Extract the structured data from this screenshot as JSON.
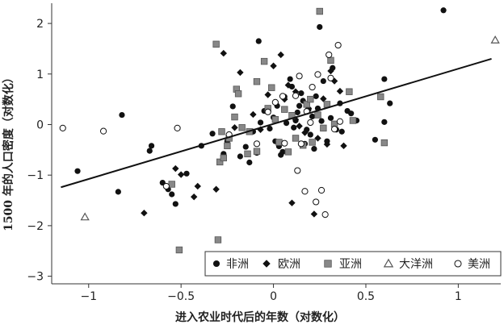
{
  "chart_data": {
    "type": "scatter",
    "title": "",
    "xlabel": "进入农业时代后的年数（对数化）",
    "ylabel": "1500 年的人口密度（对数化）",
    "xlim": [
      -1.2,
      1.23
    ],
    "ylim": [
      -3.15,
      2.4
    ],
    "xticks": [
      -1,
      -0.5,
      0,
      0.5,
      1
    ],
    "xtick_labels": [
      "−1",
      "−0.5",
      "0",
      "0.5",
      "1"
    ],
    "yticks": [
      -3,
      -2,
      -1,
      0,
      1,
      2
    ],
    "ytick_labels": [
      "−3",
      "−2",
      "−1",
      "0",
      "1",
      "2"
    ],
    "grid": false,
    "legend_position": "bottom-right",
    "fit_line": {
      "x": [
        -1.15,
        1.18
      ],
      "y": [
        -1.24,
        1.3
      ]
    },
    "series": [
      {
        "name": "非洲",
        "marker": "circle-filled",
        "color": "#111111",
        "points": [
          [
            -1.06,
            -0.92
          ],
          [
            -0.82,
            0.19
          ],
          [
            -0.84,
            -1.33
          ],
          [
            -0.66,
            -0.42
          ],
          [
            -0.67,
            -0.52
          ],
          [
            -0.6,
            -1.15
          ],
          [
            -0.57,
            -1.28
          ],
          [
            -0.55,
            -1.38
          ],
          [
            -0.53,
            -1.57
          ],
          [
            -0.47,
            -0.97
          ],
          [
            -0.39,
            -0.42
          ],
          [
            -0.33,
            -0.18
          ],
          [
            -0.27,
            -0.58
          ],
          [
            -0.25,
            -0.33
          ],
          [
            -0.22,
            0.36
          ],
          [
            -0.18,
            -0.63
          ],
          [
            -0.15,
            -0.44
          ],
          [
            -0.13,
            -0.75
          ],
          [
            -0.11,
            -0.14
          ],
          [
            -0.09,
            -0.56
          ],
          [
            -0.08,
            1.65
          ],
          [
            -0.07,
            0.04
          ],
          [
            -0.05,
            0.27
          ],
          [
            -0.02,
            -0.08
          ],
          [
            0.0,
            0.14
          ],
          [
            0.01,
            -0.33
          ],
          [
            0.02,
            0.37
          ],
          [
            0.03,
            -0.43
          ],
          [
            0.04,
            -0.6
          ],
          [
            0.05,
            -0.54
          ],
          [
            0.06,
            0.55
          ],
          [
            0.07,
            0.03
          ],
          [
            0.09,
            0.9
          ],
          [
            0.1,
            0.75
          ],
          [
            0.11,
            -0.06
          ],
          [
            0.12,
            0.08
          ],
          [
            0.13,
            0.24
          ],
          [
            0.14,
            0.37
          ],
          [
            0.15,
            0.62
          ],
          [
            0.16,
            0.47
          ],
          [
            0.17,
            -0.38
          ],
          [
            0.18,
            -0.1
          ],
          [
            0.19,
            0.3
          ],
          [
            0.2,
            -0.2
          ],
          [
            0.21,
            0.16
          ],
          [
            0.22,
            -0.48
          ],
          [
            0.23,
            0.56
          ],
          [
            0.24,
            0.32
          ],
          [
            0.25,
            1.93
          ],
          [
            0.26,
            0.07
          ],
          [
            0.27,
            0.86
          ],
          [
            0.29,
            -0.33
          ],
          [
            0.31,
            0.13
          ],
          [
            0.32,
            1.12
          ],
          [
            0.34,
            -0.1
          ],
          [
            0.36,
            0.42
          ],
          [
            0.37,
            -0.14
          ],
          [
            0.4,
            0.27
          ],
          [
            0.42,
            0.22
          ],
          [
            0.45,
            0.08
          ],
          [
            0.55,
            -0.3
          ],
          [
            0.6,
            0.9
          ],
          [
            0.6,
            0.05
          ],
          [
            0.63,
            0.42
          ],
          [
            0.92,
            2.26
          ]
        ]
      },
      {
        "name": "欧洲",
        "marker": "diamond-filled",
        "color": "#111111",
        "points": [
          [
            -0.7,
            -1.75
          ],
          [
            -0.53,
            -0.87
          ],
          [
            -0.5,
            -0.99
          ],
          [
            -0.43,
            -1.43
          ],
          [
            -0.41,
            -1.22
          ],
          [
            -0.31,
            -1.28
          ],
          [
            -0.27,
            1.41
          ],
          [
            -0.21,
            -0.06
          ],
          [
            -0.18,
            1.03
          ],
          [
            -0.07,
            -0.1
          ],
          [
            -0.03,
            0.59
          ],
          [
            0.0,
            1.16
          ],
          [
            0.04,
            1.38
          ],
          [
            0.06,
            0.5
          ],
          [
            0.08,
            0.78
          ],
          [
            0.12,
            0.65
          ],
          [
            0.12,
            0.1
          ],
          [
            0.14,
            -0.03
          ],
          [
            0.17,
            -0.16
          ],
          [
            0.19,
            0.32
          ],
          [
            0.22,
            -1.77
          ],
          [
            0.24,
            -0.27
          ],
          [
            0.27,
            0.51
          ],
          [
            0.29,
            -0.39
          ],
          [
            0.31,
            1.06
          ],
          [
            0.33,
            0.86
          ],
          [
            0.36,
            0.66
          ],
          [
            0.38,
            -0.42
          ],
          [
            0.1,
            -1.55
          ],
          [
            -0.11,
            0.2
          ]
        ]
      },
      {
        "name": "亚洲",
        "marker": "square-filled",
        "color": "#888888",
        "points": [
          [
            -0.55,
            -1.18
          ],
          [
            -0.51,
            -2.48
          ],
          [
            -0.31,
            1.59
          ],
          [
            -0.29,
            -0.74
          ],
          [
            -0.28,
            -0.14
          ],
          [
            -0.27,
            -0.66
          ],
          [
            -0.25,
            -0.42
          ],
          [
            -0.24,
            -0.27
          ],
          [
            -0.21,
            0.15
          ],
          [
            -0.2,
            0.7
          ],
          [
            -0.19,
            0.61
          ],
          [
            -0.17,
            -0.06
          ],
          [
            -0.13,
            -0.14
          ],
          [
            -0.09,
            0.85
          ],
          [
            -0.09,
            -0.53
          ],
          [
            -0.05,
            1.25
          ],
          [
            -0.03,
            0.32
          ],
          [
            -0.01,
            0.73
          ],
          [
            0.01,
            0.1
          ],
          [
            0.03,
            -0.35
          ],
          [
            0.06,
            0.3
          ],
          [
            0.08,
            -0.54
          ],
          [
            0.1,
            0.18
          ],
          [
            0.12,
            -0.27
          ],
          [
            0.16,
            -0.41
          ],
          [
            0.18,
            0.4
          ],
          [
            0.2,
            0.5
          ],
          [
            0.21,
            -0.35
          ],
          [
            0.24,
            0.19
          ],
          [
            0.25,
            2.24
          ],
          [
            0.27,
            -0.07
          ],
          [
            0.29,
            0.4
          ],
          [
            0.31,
            1.27
          ],
          [
            0.33,
            0.01
          ],
          [
            0.41,
            0.65
          ],
          [
            0.43,
            0.08
          ],
          [
            0.58,
            0.55
          ],
          [
            0.6,
            -0.36
          ],
          [
            -0.3,
            -2.28
          ],
          [
            -0.14,
            -0.58
          ]
        ]
      },
      {
        "name": "大洋洲",
        "marker": "triangle-open",
        "color": "#555555",
        "points": [
          [
            -1.02,
            -1.83
          ],
          [
            1.2,
            1.67
          ]
        ]
      },
      {
        "name": "美洲",
        "marker": "circle-open",
        "color": "#111111",
        "points": [
          [
            -1.14,
            -0.07
          ],
          [
            -0.92,
            -0.13
          ],
          [
            -0.58,
            -1.22
          ],
          [
            -0.52,
            -0.07
          ],
          [
            -0.24,
            -0.2
          ],
          [
            -0.09,
            -0.38
          ],
          [
            -0.03,
            0.25
          ],
          [
            0.01,
            0.44
          ],
          [
            0.05,
            0.56
          ],
          [
            0.06,
            -0.37
          ],
          [
            0.12,
            0.57
          ],
          [
            0.13,
            -0.91
          ],
          [
            0.15,
            -0.38
          ],
          [
            0.17,
            -1.32
          ],
          [
            0.18,
            0.26
          ],
          [
            0.21,
            0.74
          ],
          [
            0.23,
            -1.53
          ],
          [
            0.24,
            0.99
          ],
          [
            0.26,
            -1.3
          ],
          [
            0.28,
            -1.78
          ],
          [
            0.3,
            1.38
          ],
          [
            0.31,
            0.92
          ],
          [
            0.35,
            1.57
          ],
          [
            0.36,
            0.06
          ],
          [
            0.33,
            -0.09
          ],
          [
            0.14,
            0.96
          ],
          [
            0.2,
            0.04
          ]
        ]
      }
    ]
  }
}
